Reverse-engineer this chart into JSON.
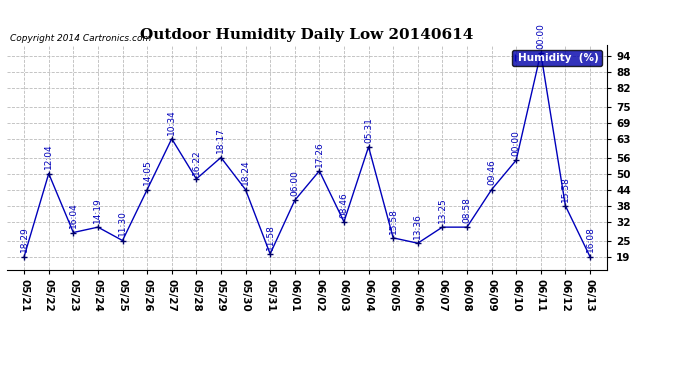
{
  "title": "Outdoor Humidity Daily Low 20140614",
  "copyright": "Copyright 2014 Cartronics.com",
  "legend_label": "Humidity  (%)",
  "line_color": "#0000bb",
  "marker_color": "#000066",
  "background_color": "#ffffff",
  "grid_color": "#bbbbbb",
  "dates": [
    "05/21",
    "05/22",
    "05/23",
    "05/24",
    "05/25",
    "05/26",
    "05/27",
    "05/28",
    "05/29",
    "05/30",
    "05/31",
    "06/01",
    "06/02",
    "06/03",
    "06/04",
    "06/05",
    "06/06",
    "06/07",
    "06/08",
    "06/09",
    "06/10",
    "06/11",
    "06/12",
    "06/13"
  ],
  "values": [
    19,
    50,
    28,
    30,
    25,
    44,
    63,
    48,
    56,
    44,
    20,
    40,
    51,
    32,
    60,
    26,
    24,
    30,
    30,
    44,
    55,
    95,
    38,
    19
  ],
  "time_labels": [
    "18:29",
    "12:04",
    "16:04",
    "14:19",
    "11:30",
    "14:05",
    "10:34",
    "16:22",
    "18:17",
    "18:24",
    "11:58",
    "06:00",
    "17:26",
    "08:46",
    "05:31",
    "15:58",
    "13:36",
    "13:25",
    "08:58",
    "09:46",
    "00:00",
    "00:00",
    "15:58",
    "16:08"
  ],
  "yticks": [
    19,
    25,
    32,
    38,
    44,
    50,
    56,
    63,
    69,
    75,
    82,
    88,
    94
  ],
  "ylim": [
    14,
    98
  ],
  "title_fontsize": 11,
  "label_fontsize": 6.5,
  "tick_fontsize": 7.5
}
